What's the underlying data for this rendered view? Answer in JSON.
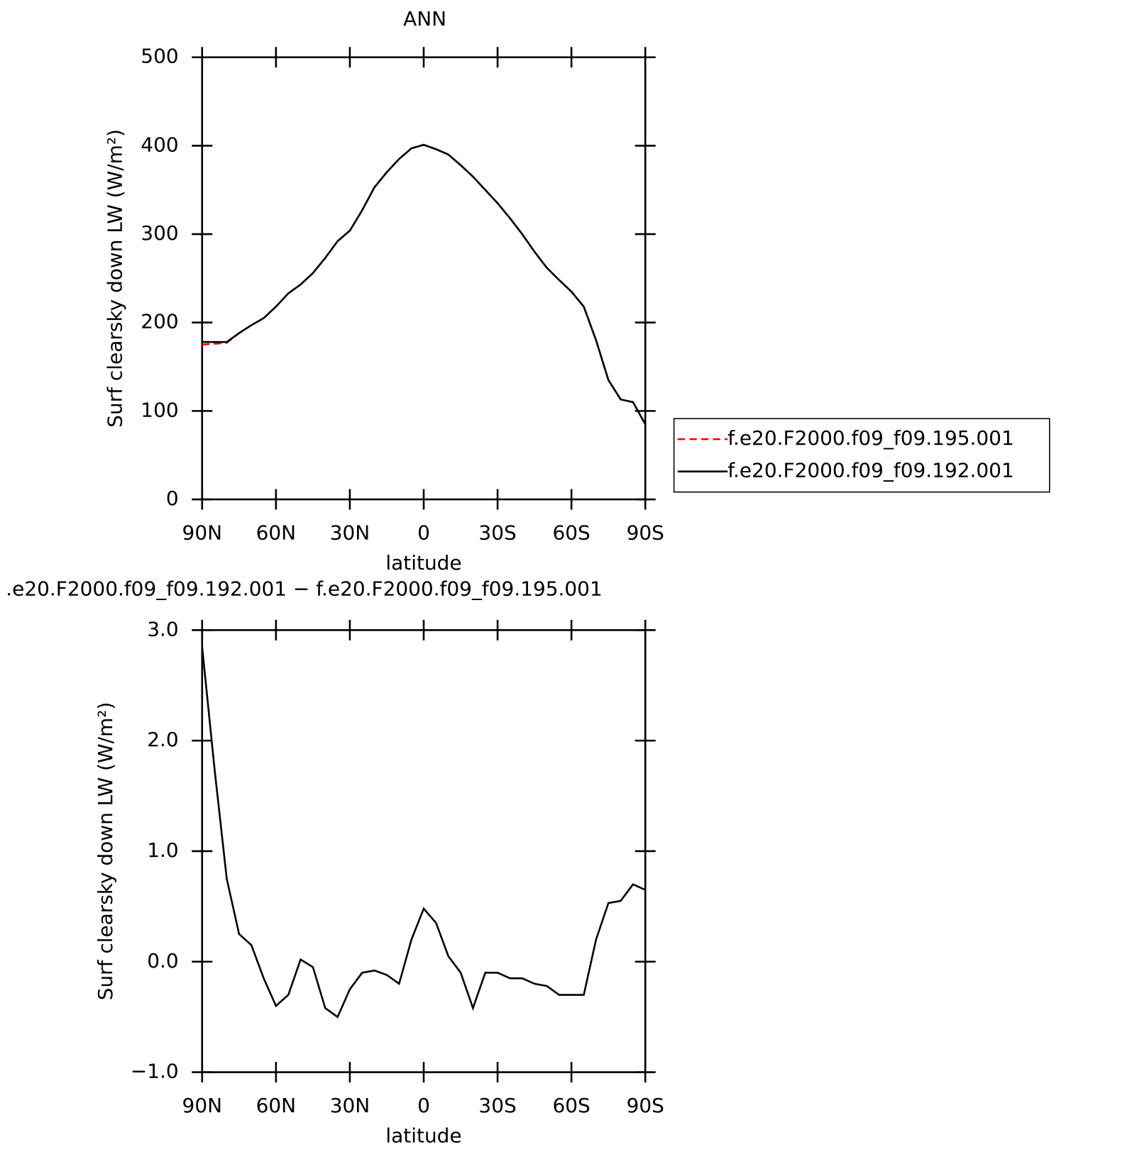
{
  "chart_data": [
    {
      "type": "line",
      "title": "ANN",
      "x_label": "latitude",
      "y_label": "Surf clearsky down LW (W/m²)",
      "x": [
        90,
        85,
        80,
        75,
        70,
        65,
        60,
        55,
        50,
        45,
        40,
        35,
        30,
        25,
        20,
        15,
        10,
        5,
        0,
        -5,
        -10,
        -15,
        -20,
        -25,
        -30,
        -35,
        -40,
        -45,
        -50,
        -55,
        -60,
        -65,
        -70,
        -75,
        -80,
        -85,
        -90
      ],
      "xlim": [
        90,
        -90
      ],
      "xticks": [
        {
          "value": 90,
          "label": "90N"
        },
        {
          "value": 60,
          "label": "60N"
        },
        {
          "value": 30,
          "label": "30N"
        },
        0,
        {
          "value": -30,
          "label": "30S"
        },
        {
          "value": -60,
          "label": "60S"
        },
        {
          "value": -90,
          "label": "90S"
        }
      ],
      "ylim": [
        0,
        500
      ],
      "yticks": [
        0,
        100,
        200,
        300,
        400,
        500
      ],
      "legend": "right",
      "series": [
        {
          "name": "f.e20.F2000.f09_f09.195.001",
          "color": "#ff0000",
          "linestyle": "dashed",
          "values": [
            175,
            176,
            177,
            188,
            197,
            205,
            218,
            233,
            243,
            256,
            273,
            292,
            304,
            327,
            353,
            370,
            385,
            397,
            401,
            396,
            390,
            378,
            365,
            350,
            335,
            318,
            300,
            280,
            262,
            248,
            235,
            218,
            180,
            135,
            113,
            110,
            85
          ]
        },
        {
          "name": "f.e20.F2000.f09_f09.192.001",
          "color": "#000000",
          "linestyle": "solid",
          "values": [
            178,
            178,
            178,
            188,
            197,
            205,
            218,
            233,
            243,
            256,
            273,
            292,
            304,
            327,
            353,
            370,
            385,
            397,
            401,
            396,
            390,
            378,
            365,
            350,
            335,
            318,
            300,
            280,
            262,
            248,
            235,
            218,
            180,
            135,
            113,
            110,
            85
          ]
        }
      ]
    },
    {
      "type": "line",
      "title": ".e20.F2000.f09_f09.192.001 − f.e20.F2000.f09_f09.195.001",
      "x_label": "latitude",
      "y_label": "Surf clearsky down LW (W/m²)",
      "x": [
        90,
        85,
        80,
        75,
        70,
        65,
        60,
        55,
        50,
        45,
        40,
        35,
        30,
        25,
        20,
        15,
        10,
        5,
        0,
        -5,
        -10,
        -15,
        -20,
        -25,
        -30,
        -35,
        -40,
        -45,
        -50,
        -55,
        -60,
        -65,
        -70,
        -75,
        -80,
        -85,
        -90
      ],
      "xlim": [
        90,
        -90
      ],
      "xticks": [
        {
          "value": 90,
          "label": "90N"
        },
        {
          "value": 60,
          "label": "60N"
        },
        {
          "value": 30,
          "label": "30N"
        },
        0,
        {
          "value": -30,
          "label": "30S"
        },
        {
          "value": -60,
          "label": "60S"
        },
        {
          "value": -90,
          "label": "90S"
        }
      ],
      "ylim": [
        -1,
        3
      ],
      "yticks": [
        {
          "value": -1,
          "label": "−1.0"
        },
        {
          "value": 0,
          "label": "0.0"
        },
        {
          "value": 1,
          "label": "1.0"
        },
        {
          "value": 2,
          "label": "2.0"
        },
        {
          "value": 3,
          "label": "3.0"
        }
      ],
      "series": [
        {
          "color": "#000000",
          "linestyle": "solid",
          "values": [
            2.85,
            1.75,
            0.75,
            0.25,
            0.15,
            -0.15,
            -0.4,
            -0.3,
            0.02,
            -0.05,
            -0.42,
            -0.5,
            -0.25,
            -0.1,
            -0.08,
            -0.12,
            -0.2,
            0.2,
            0.48,
            0.35,
            0.05,
            -0.1,
            -0.42,
            -0.1,
            -0.1,
            -0.15,
            -0.15,
            -0.2,
            -0.22,
            -0.3,
            -0.3,
            -0.3,
            0.2,
            0.53,
            0.55,
            0.7,
            0.65
          ]
        }
      ]
    }
  ]
}
